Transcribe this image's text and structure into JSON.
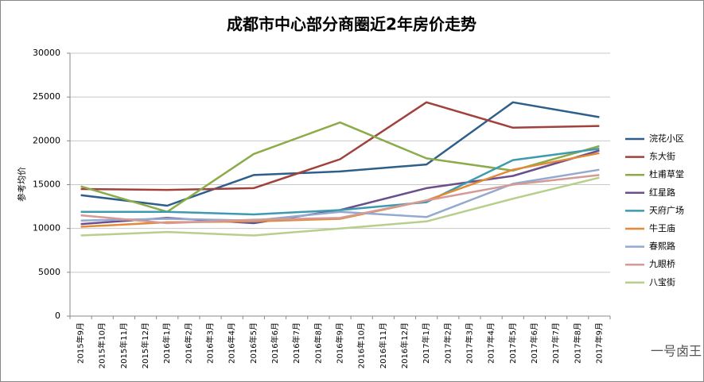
{
  "chart_data": {
    "type": "line",
    "title": "成都市中心部分商圈近2年房价走势",
    "y_label": "参考均价",
    "watermark": "一号卤王",
    "categories": [
      "2015年9月",
      "2015年10月",
      "2015年11月",
      "2015年12月",
      "2016年1月",
      "2016年2月",
      "2016年3月",
      "2016年4月",
      "2016年5月",
      "2016年6月",
      "2016年7月",
      "2016年8月",
      "2016年9月",
      "2016年10月",
      "2016年11月",
      "2016年12月",
      "2017年1月",
      "2017年2月",
      "2017年3月",
      "2017年4月",
      "2017年5月",
      "2017年6月",
      "2017年7月",
      "2017年8月",
      "2017年9月"
    ],
    "span_gaps": true,
    "grid": true,
    "legend": "right",
    "ylim": [
      0,
      30000
    ],
    "yticks": [
      0,
      5000,
      10000,
      15000,
      20000,
      25000,
      30000
    ],
    "series": [
      {
        "name": "浣花小区",
        "color": "#2e5f8a",
        "values": [
          13800,
          null,
          null,
          null,
          12600,
          null,
          null,
          null,
          16100,
          null,
          null,
          null,
          16500,
          null,
          null,
          null,
          17300,
          null,
          null,
          null,
          24400,
          null,
          null,
          null,
          22700
        ]
      },
      {
        "name": "东大街",
        "color": "#a0413c",
        "values": [
          14500,
          null,
          null,
          null,
          14400,
          null,
          null,
          null,
          14600,
          null,
          null,
          null,
          17900,
          null,
          null,
          null,
          24400,
          null,
          null,
          null,
          21500,
          null,
          null,
          null,
          21700
        ]
      },
      {
        "name": "杜甫草堂",
        "color": "#8cab4a",
        "values": [
          14800,
          null,
          null,
          null,
          11900,
          null,
          null,
          null,
          18500,
          null,
          null,
          null,
          22100,
          null,
          null,
          null,
          18000,
          null,
          null,
          null,
          16600,
          null,
          null,
          null,
          19400
        ]
      },
      {
        "name": "红星路",
        "color": "#6b4e8c",
        "values": [
          10500,
          null,
          null,
          null,
          11200,
          null,
          null,
          null,
          10600,
          null,
          null,
          null,
          12100,
          null,
          null,
          null,
          14600,
          null,
          null,
          null,
          16000,
          null,
          null,
          null,
          18900
        ]
      },
      {
        "name": "天府广场",
        "color": "#3e9aaf",
        "values": [
          11900,
          null,
          null,
          null,
          11900,
          null,
          null,
          null,
          11600,
          null,
          null,
          null,
          12100,
          null,
          null,
          null,
          13000,
          null,
          null,
          null,
          17800,
          null,
          null,
          null,
          19100
        ]
      },
      {
        "name": "牛王庙",
        "color": "#e28a37",
        "values": [
          10200,
          null,
          null,
          null,
          10700,
          null,
          null,
          null,
          10800,
          null,
          null,
          null,
          11100,
          null,
          null,
          null,
          13200,
          null,
          null,
          null,
          16700,
          null,
          null,
          null,
          18600
        ]
      },
      {
        "name": "春熙路",
        "color": "#94a9d0",
        "values": [
          10900,
          null,
          null,
          null,
          11100,
          null,
          null,
          null,
          10900,
          null,
          null,
          null,
          11900,
          null,
          null,
          null,
          11300,
          null,
          null,
          null,
          15100,
          null,
          null,
          null,
          16700
        ]
      },
      {
        "name": "九眼桥",
        "color": "#d49a96",
        "values": [
          11500,
          null,
          null,
          null,
          10600,
          null,
          null,
          null,
          11000,
          null,
          null,
          null,
          11200,
          null,
          null,
          null,
          13200,
          null,
          null,
          null,
          15000,
          null,
          null,
          null,
          16100
        ]
      },
      {
        "name": "八宝街",
        "color": "#b7cf8b",
        "values": [
          9200,
          null,
          null,
          null,
          9600,
          null,
          null,
          null,
          9200,
          null,
          null,
          null,
          10000,
          null,
          null,
          null,
          10800,
          null,
          null,
          null,
          13400,
          null,
          null,
          null,
          15800
        ]
      }
    ]
  }
}
